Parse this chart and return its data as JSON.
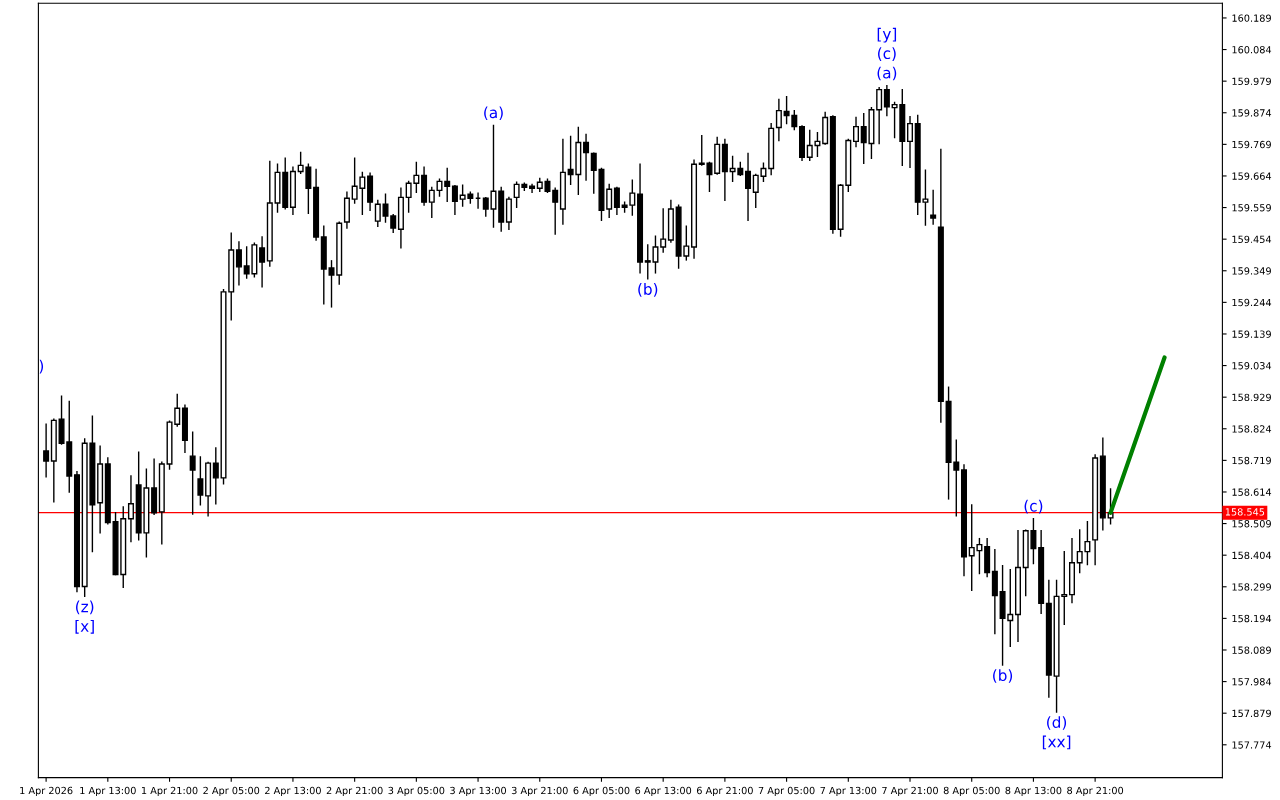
{
  "chart_data": {
    "type": "candlestick",
    "color": "#000000",
    "categories": [
      "1 Apr 2026",
      null,
      null,
      null,
      null,
      null,
      null,
      null,
      "1 Apr 13:00",
      null,
      null,
      null,
      null,
      null,
      null,
      null,
      "1 Apr 21:00",
      null,
      null,
      null,
      null,
      null,
      null,
      null,
      "2 Apr 05:00",
      null,
      null,
      null,
      null,
      null,
      null,
      null,
      "2 Apr 13:00",
      null,
      null,
      null,
      null,
      null,
      null,
      null,
      "2 Apr 21:00",
      null,
      null,
      null,
      null,
      null,
      null,
      null,
      "3 Apr 05:00",
      null,
      null,
      null,
      null,
      null,
      null,
      null,
      "3 Apr 13:00",
      null,
      null,
      null,
      null,
      null,
      null,
      null,
      "3 Apr 21:00",
      null,
      null,
      null,
      null,
      null,
      null,
      null,
      "6 Apr 05:00",
      null,
      null,
      null,
      null,
      null,
      null,
      null,
      "6 Apr 13:00",
      null,
      null,
      null,
      null,
      null,
      null,
      null,
      "6 Apr 21:00",
      null,
      null,
      null,
      null,
      null,
      null,
      null,
      "7 Apr 05:00",
      null,
      null,
      null,
      null,
      null,
      null,
      null,
      "7 Apr 13:00",
      null,
      null,
      null,
      null,
      null,
      null,
      null,
      "7 Apr 21:00",
      null,
      null,
      null,
      null,
      null,
      null,
      null,
      "8 Apr 05:00",
      null,
      null,
      null,
      null,
      null,
      null,
      null,
      "8 Apr 13:00",
      null,
      null,
      null,
      null,
      null,
      null,
      null,
      "8 Apr 21:00",
      null,
      null,
      null,
      null,
      null,
      null,
      null,
      null,
      null,
      null,
      null,
      null,
      null,
      null,
      null,
      null
    ],
    "ohlc": [
      [
        158.75,
        158.839,
        158.664,
        158.717
      ],
      [
        158.717,
        158.856,
        158.581,
        158.852
      ],
      [
        158.856,
        158.932,
        158.773,
        158.776
      ],
      [
        158.78,
        158.915,
        158.614,
        158.667
      ],
      [
        158.671,
        158.681,
        158.283,
        158.3
      ],
      [
        158.3,
        158.79,
        158.267,
        158.776
      ],
      [
        158.776,
        158.866,
        158.416,
        158.571
      ],
      [
        158.578,
        158.766,
        158.478,
        158.707
      ],
      [
        158.707,
        158.727,
        158.508,
        158.512
      ],
      [
        158.515,
        158.545,
        158.34,
        158.34
      ],
      [
        158.34,
        158.564,
        158.297,
        158.525
      ],
      [
        158.525,
        158.667,
        158.449,
        158.575
      ],
      [
        158.637,
        158.746,
        158.455,
        158.478
      ],
      [
        158.478,
        158.69,
        158.399,
        158.627
      ],
      [
        158.627,
        158.723,
        158.54,
        158.545
      ],
      [
        158.548,
        158.713,
        158.442,
        158.707
      ],
      [
        158.707,
        158.849,
        158.69,
        158.846
      ],
      [
        158.839,
        158.938,
        158.833,
        158.892
      ],
      [
        158.892,
        158.902,
        158.746,
        158.786
      ],
      [
        158.733,
        158.813,
        158.541,
        158.687
      ],
      [
        158.657,
        158.73,
        158.571,
        158.604
      ],
      [
        158.601,
        158.712,
        158.535,
        158.71
      ],
      [
        158.71,
        158.76,
        158.575,
        158.661
      ],
      [
        158.661,
        159.286,
        158.641,
        159.279
      ],
      [
        159.279,
        159.474,
        159.186,
        159.418
      ],
      [
        159.418,
        159.445,
        159.302,
        159.362
      ],
      [
        159.365,
        159.428,
        159.325,
        159.339
      ],
      [
        159.339,
        159.441,
        159.329,
        159.435
      ],
      [
        159.425,
        159.461,
        159.296,
        159.378
      ],
      [
        159.382,
        159.712,
        159.365,
        159.574
      ],
      [
        159.574,
        159.703,
        159.544,
        159.676
      ],
      [
        159.676,
        159.723,
        159.555,
        159.56
      ],
      [
        159.56,
        159.693,
        159.537,
        159.679
      ],
      [
        159.679,
        159.742,
        159.673,
        159.699
      ],
      [
        159.693,
        159.703,
        159.54,
        159.623
      ],
      [
        159.626,
        159.686,
        159.451,
        159.461
      ],
      [
        159.461,
        159.497,
        159.239,
        159.355
      ],
      [
        159.358,
        159.382,
        159.229,
        159.335
      ],
      [
        159.335,
        159.51,
        159.305,
        159.507
      ],
      [
        159.511,
        159.61,
        159.491,
        159.59
      ],
      [
        159.587,
        159.723,
        159.574,
        159.63
      ],
      [
        159.623,
        159.676,
        159.537,
        159.66
      ],
      [
        159.663,
        159.673,
        159.55,
        159.577
      ],
      [
        159.514,
        159.583,
        159.497,
        159.57
      ],
      [
        159.57,
        159.603,
        159.511,
        159.531
      ],
      [
        159.531,
        159.535,
        159.477,
        159.491
      ],
      [
        159.487,
        159.623,
        159.425,
        159.593
      ],
      [
        159.593,
        159.646,
        159.544,
        159.64
      ],
      [
        159.64,
        159.709,
        159.61,
        159.666
      ],
      [
        159.666,
        159.693,
        159.567,
        159.577
      ],
      [
        159.577,
        159.626,
        159.527,
        159.616
      ],
      [
        159.616,
        159.653,
        159.597,
        159.646
      ],
      [
        159.646,
        159.689,
        159.58,
        159.63
      ],
      [
        159.63,
        159.632,
        159.537,
        159.58
      ],
      [
        159.587,
        159.633,
        159.564,
        159.6
      ],
      [
        159.603,
        159.61,
        159.574,
        159.59
      ],
      [
        159.59,
        159.607,
        159.557,
        159.59
      ],
      [
        159.59,
        159.592,
        159.531,
        159.554
      ],
      [
        159.554,
        159.832,
        159.494,
        159.613
      ],
      [
        159.613,
        159.626,
        159.481,
        159.511
      ],
      [
        159.511,
        159.593,
        159.487,
        159.587
      ],
      [
        159.593,
        159.643,
        159.56,
        159.636
      ],
      [
        159.636,
        159.64,
        159.616,
        159.626
      ],
      [
        159.63,
        159.636,
        159.61,
        159.623
      ],
      [
        159.623,
        159.656,
        159.613,
        159.643
      ],
      [
        159.646,
        159.653,
        159.61,
        159.613
      ],
      [
        159.616,
        159.623,
        159.471,
        159.577
      ],
      [
        159.554,
        159.785,
        159.504,
        159.676
      ],
      [
        159.686,
        159.795,
        159.636,
        159.669
      ],
      [
        159.669,
        159.825,
        159.603,
        159.775
      ],
      [
        159.775,
        159.802,
        159.65,
        159.742
      ],
      [
        159.739,
        159.74,
        159.607,
        159.683
      ],
      [
        159.686,
        159.689,
        159.517,
        159.55
      ],
      [
        159.554,
        159.636,
        159.527,
        159.62
      ],
      [
        159.623,
        159.626,
        159.537,
        159.56
      ],
      [
        159.567,
        159.577,
        159.544,
        159.56
      ],
      [
        159.567,
        159.65,
        159.534,
        159.607
      ],
      [
        159.603,
        159.703,
        159.342,
        159.378
      ],
      [
        159.382,
        159.435,
        159.322,
        159.378
      ],
      [
        159.378,
        159.464,
        159.342,
        159.428
      ],
      [
        159.428,
        159.554,
        159.411,
        159.454
      ],
      [
        159.451,
        159.583,
        159.444,
        159.554
      ],
      [
        159.56,
        159.567,
        159.358,
        159.398
      ],
      [
        159.398,
        159.497,
        159.385,
        159.431
      ],
      [
        159.428,
        159.716,
        159.391,
        159.703
      ],
      [
        159.706,
        159.798,
        159.7,
        159.703
      ],
      [
        159.706,
        159.709,
        159.613,
        159.669
      ],
      [
        159.673,
        159.792,
        159.67,
        159.769
      ],
      [
        159.769,
        159.785,
        159.583,
        159.679
      ],
      [
        159.679,
        159.729,
        159.646,
        159.689
      ],
      [
        159.689,
        159.709,
        159.666,
        159.669
      ],
      [
        159.679,
        159.739,
        159.517,
        159.623
      ],
      [
        159.61,
        159.669,
        159.56,
        159.666
      ],
      [
        159.663,
        159.706,
        159.646,
        159.689
      ],
      [
        159.689,
        159.838,
        159.669,
        159.822
      ],
      [
        159.825,
        159.918,
        159.782,
        159.881
      ],
      [
        159.878,
        159.927,
        159.838,
        159.865
      ],
      [
        159.865,
        159.881,
        159.818,
        159.828
      ],
      [
        159.828,
        159.83,
        159.716,
        159.726
      ],
      [
        159.726,
        159.815,
        159.716,
        159.765
      ],
      [
        159.765,
        159.808,
        159.729,
        159.779
      ],
      [
        159.772,
        159.875,
        159.77,
        159.858
      ],
      [
        159.861,
        159.863,
        159.474,
        159.487
      ],
      [
        159.487,
        159.635,
        159.464,
        159.633
      ],
      [
        159.633,
        159.785,
        159.613,
        159.782
      ],
      [
        159.779,
        159.858,
        159.762,
        159.828
      ],
      [
        159.828,
        159.871,
        159.706,
        159.775
      ],
      [
        159.772,
        159.891,
        159.723,
        159.884
      ],
      [
        159.884,
        159.957,
        159.772,
        159.951
      ],
      [
        159.951,
        159.964,
        159.865,
        159.894
      ],
      [
        159.891,
        159.908,
        159.792,
        159.901
      ],
      [
        159.901,
        159.951,
        159.699,
        159.779
      ],
      [
        159.779,
        159.861,
        159.693,
        159.838
      ],
      [
        159.838,
        159.865,
        159.537,
        159.577
      ],
      [
        159.577,
        159.683,
        159.501,
        159.587
      ],
      [
        159.534,
        159.616,
        159.504,
        159.524
      ],
      [
        159.494,
        159.752,
        158.846,
        158.915
      ],
      [
        158.915,
        158.962,
        158.591,
        158.713
      ],
      [
        158.713,
        158.786,
        158.535,
        158.687
      ],
      [
        158.687,
        158.704,
        158.336,
        158.399
      ],
      [
        158.402,
        158.571,
        158.287,
        158.429
      ],
      [
        158.419,
        158.459,
        158.343,
        158.439
      ],
      [
        158.432,
        158.459,
        158.333,
        158.346
      ],
      [
        158.35,
        158.422,
        158.144,
        158.27
      ],
      [
        158.283,
        158.369,
        158.039,
        158.194
      ],
      [
        158.187,
        158.356,
        158.101,
        158.207
      ],
      [
        158.207,
        158.485,
        158.118,
        158.363
      ],
      [
        158.363,
        158.487,
        158.27,
        158.485
      ],
      [
        158.485,
        158.525,
        158.376,
        158.426
      ],
      [
        158.429,
        158.485,
        158.211,
        158.244
      ],
      [
        158.244,
        158.32,
        157.933,
        158.006
      ],
      [
        158.002,
        158.32,
        157.883,
        158.267
      ],
      [
        158.267,
        158.416,
        158.174,
        158.273
      ],
      [
        158.273,
        158.459,
        158.247,
        158.379
      ],
      [
        158.379,
        158.488,
        158.346,
        158.416
      ],
      [
        158.416,
        158.515,
        158.373,
        158.449
      ],
      [
        158.455,
        158.737,
        158.373,
        158.727
      ],
      [
        158.733,
        158.793,
        158.488,
        158.528
      ],
      [
        158.528,
        158.624,
        158.508,
        158.545
      ],
      null,
      null,
      null,
      null,
      null,
      null,
      null,
      null,
      null,
      null,
      null,
      null,
      null,
      null
    ],
    "series": [
      {
        "type": "line",
        "color": "#008000",
        "values": [
          null,
          null,
          null,
          null,
          null,
          null,
          null,
          null,
          null,
          null,
          null,
          null,
          null,
          null,
          null,
          null,
          null,
          null,
          null,
          null,
          null,
          null,
          null,
          null,
          null,
          null,
          null,
          null,
          null,
          null,
          null,
          null,
          null,
          null,
          null,
          null,
          null,
          null,
          null,
          null,
          null,
          null,
          null,
          null,
          null,
          null,
          null,
          null,
          null,
          null,
          null,
          null,
          null,
          null,
          null,
          null,
          null,
          null,
          null,
          null,
          null,
          null,
          null,
          null,
          null,
          null,
          null,
          null,
          null,
          null,
          null,
          null,
          null,
          null,
          null,
          null,
          null,
          null,
          null,
          null,
          null,
          null,
          null,
          null,
          null,
          null,
          null,
          null,
          null,
          null,
          null,
          null,
          null,
          null,
          null,
          null,
          null,
          null,
          null,
          null,
          null,
          null,
          null,
          null,
          null,
          null,
          null,
          null,
          null,
          null,
          null,
          null,
          null,
          null,
          null,
          null,
          null,
          null,
          null,
          null,
          null,
          null,
          null,
          null,
          null,
          null,
          null,
          null,
          null,
          null,
          null,
          null,
          null,
          null,
          null,
          null,
          null,
          null,
          158.545,
          null,
          null,
          null,
          null,
          null,
          null,
          159.061,
          null,
          null,
          null,
          null,
          null,
          null,
          null
        ]
      }
    ],
    "ylim": [
      157.665,
      160.238
    ],
    "yticks": [
      157.774,
      157.879,
      157.984,
      158.089,
      158.194,
      158.299,
      158.404,
      158.509,
      158.614,
      158.719,
      158.824,
      158.929,
      159.034,
      159.139,
      159.244,
      159.349,
      159.454,
      159.559,
      159.664,
      159.769,
      159.874,
      159.979,
      160.084,
      160.189
    ],
    "ref_lines": [
      {
        "axis": "y",
        "value": 158.545,
        "label": "158.545",
        "color": "#ff0000"
      }
    ],
    "annotations": [
      ")",
      {
        "text": "(z)",
        "y": 158.267
      },
      {
        "text": "[x]",
        "y": 158.267
      },
      {
        "text": "(a)",
        "y": 159.832
      },
      {
        "text": "(b)",
        "y": 159.322
      },
      {
        "text": "(a)",
        "y": 159.964
      },
      {
        "text": "(c)",
        "y": 159.964
      },
      {
        "text": "[y]",
        "y": 159.964
      },
      {
        "text": "(b)",
        "y": 158.039
      },
      {
        "text": "(c)",
        "y": 158.525
      },
      {
        "text": "(d)",
        "y": 157.883
      },
      {
        "text": "[xx]",
        "y": 157.883
      }
    ]
  }
}
